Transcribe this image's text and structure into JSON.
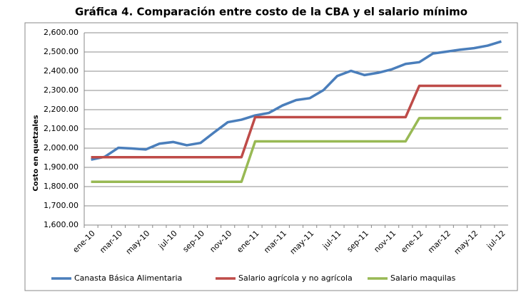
{
  "chart_data": {
    "type": "line",
    "title": "Gráfica 4.  Comparación entre costo de la CBA y el salario mínimo",
    "y_label": "Costo en quetzales",
    "categories": [
      "ene-10",
      null,
      "mar-10",
      null,
      "may-10",
      null,
      "jul-10",
      null,
      "sep-10",
      null,
      "nov-10",
      null,
      "ene-11",
      null,
      "mar-11",
      null,
      "may-11",
      null,
      "jul-11",
      null,
      "sep-11",
      null,
      "nov-11",
      null,
      "ene-12",
      null,
      "mar-12",
      null,
      "may-12",
      null,
      "jul-12"
    ],
    "series": [
      {
        "name": "Canasta Básica Alimentaria",
        "color": "#4a7ebb",
        "values": [
          1940,
          1955,
          2002,
          1998,
          1993,
          2023,
          2032,
          2015,
          2027,
          2082,
          2135,
          2148,
          2170,
          2183,
          2222,
          2250,
          2260,
          2302,
          2375,
          2402,
          2380,
          2392,
          2410,
          2438,
          2447,
          2492,
          2502,
          2512,
          2520,
          2533,
          2555
        ]
      },
      {
        "name": "Salario agrícola y no agrícola",
        "color": "#be4b48",
        "values": [
          1953,
          1953,
          1953,
          1953,
          1953,
          1953,
          1953,
          1953,
          1953,
          1953,
          1953,
          1953,
          2161,
          2161,
          2161,
          2161,
          2161,
          2161,
          2161,
          2161,
          2161,
          2161,
          2161,
          2161,
          2324,
          2324,
          2324,
          2324,
          2324,
          2324,
          2324
        ]
      },
      {
        "name": "Salario maquilas",
        "color": "#98b954",
        "values": [
          1825,
          1825,
          1825,
          1825,
          1825,
          1825,
          1825,
          1825,
          1825,
          1825,
          1825,
          1825,
          2035,
          2035,
          2035,
          2035,
          2035,
          2035,
          2035,
          2035,
          2035,
          2035,
          2035,
          2035,
          2156,
          2156,
          2156,
          2156,
          2156,
          2156,
          2156
        ]
      }
    ],
    "ylim": [
      1600,
      2600
    ],
    "yticks": [
      {
        "value": 1600,
        "label": "1,600.00"
      },
      {
        "value": 1700,
        "label": "1,700.00"
      },
      {
        "value": 1800,
        "label": "1,800.00"
      },
      {
        "value": 1900,
        "label": "1,900.00"
      },
      {
        "value": 2000,
        "label": "2,000.00"
      },
      {
        "value": 2100,
        "label": "2,100.00"
      },
      {
        "value": 2200,
        "label": "2,200.00"
      },
      {
        "value": 2300,
        "label": "2,300.00"
      },
      {
        "value": 2400,
        "label": "2,400.00"
      },
      {
        "value": 2500,
        "label": "2,500.00"
      },
      {
        "value": 2600,
        "label": "2,600.00"
      }
    ],
    "grid": true,
    "legend": "bottom"
  }
}
